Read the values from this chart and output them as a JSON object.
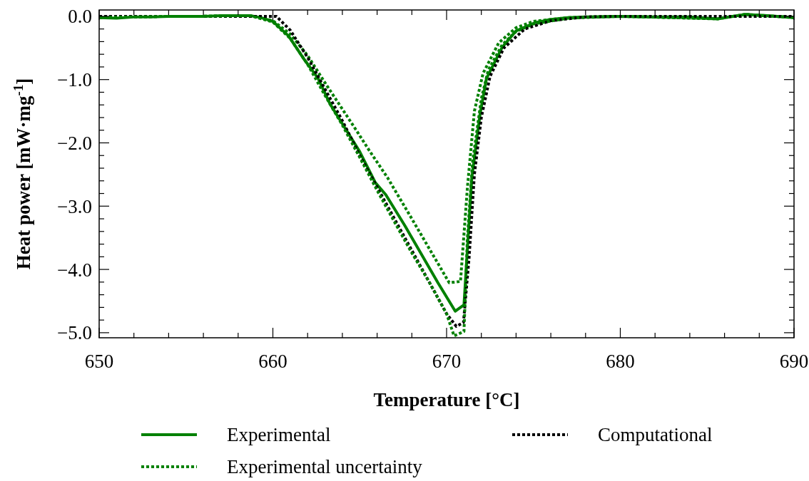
{
  "chart_data": {
    "type": "line",
    "xlabel": "Temperature [°C]",
    "ylabel": "Heat power [mW·mg$^{-1}$]",
    "xlim": [
      650,
      690
    ],
    "ylim": [
      -5.08,
      0.1
    ],
    "xticks": [
      650,
      {
        "value": 652,
        "label": null
      },
      {
        "value": 654,
        "label": null
      },
      {
        "value": 656,
        "label": null
      },
      {
        "value": 658,
        "label": null
      },
      660,
      {
        "value": 662,
        "label": null
      },
      {
        "value": 664,
        "label": null
      },
      {
        "value": 666,
        "label": null
      },
      {
        "value": 668,
        "label": null
      },
      670,
      {
        "value": 672,
        "label": null
      },
      {
        "value": 674,
        "label": null
      },
      {
        "value": 676,
        "label": null
      },
      {
        "value": 678,
        "label": null
      },
      680,
      {
        "value": 682,
        "label": null
      },
      {
        "value": 684,
        "label": null
      },
      {
        "value": 686,
        "label": null
      },
      {
        "value": 688,
        "label": null
      },
      690
    ],
    "yticks": [
      {
        "value": 0,
        "label": "0.0"
      },
      {
        "value": -0.2,
        "label": null
      },
      {
        "value": -0.4,
        "label": null
      },
      {
        "value": -0.6,
        "label": null
      },
      {
        "value": -0.8,
        "label": null
      },
      {
        "value": -1,
        "label": "−1.0"
      },
      {
        "value": -1.2,
        "label": null
      },
      {
        "value": -1.4,
        "label": null
      },
      {
        "value": -1.6,
        "label": null
      },
      {
        "value": -1.8,
        "label": null
      },
      {
        "value": -2,
        "label": "−2.0"
      },
      {
        "value": -2.2,
        "label": null
      },
      {
        "value": -2.4,
        "label": null
      },
      {
        "value": -2.6,
        "label": null
      },
      {
        "value": -2.8,
        "label": null
      },
      {
        "value": -3,
        "label": "−3.0"
      },
      {
        "value": -3.2,
        "label": null
      },
      {
        "value": -3.4,
        "label": null
      },
      {
        "value": -3.6,
        "label": null
      },
      {
        "value": -3.8,
        "label": null
      },
      {
        "value": -4,
        "label": "−4.0"
      },
      {
        "value": -4.2,
        "label": null
      },
      {
        "value": -4.4,
        "label": null
      },
      {
        "value": -4.6,
        "label": null
      },
      {
        "value": -4.8,
        "label": null
      },
      {
        "value": -5,
        "label": "−5.0"
      }
    ],
    "grid": false,
    "legend": "bottom",
    "marker": "none",
    "series": [
      {
        "name": "Experimental",
        "color": "#008000",
        "line_style": "solid",
        "x": [
          650,
          651,
          652,
          653,
          654,
          655,
          656,
          657,
          658,
          658.7,
          659.3,
          660,
          660.9,
          661.8,
          662.6,
          663.3,
          665,
          665.9,
          666.5,
          667.6,
          669.5,
          670.5,
          671,
          671.45,
          671.93,
          672.3,
          673.2,
          674,
          675.1,
          676,
          677,
          678,
          680,
          682,
          684,
          685.6,
          687.2,
          688.5,
          690
        ],
        "values": [
          -0.02,
          -0.03,
          -0.01,
          -0.01,
          0,
          0,
          0,
          0.01,
          0.01,
          0.01,
          -0.02,
          -0.08,
          -0.31,
          -0.68,
          -0.98,
          -1.39,
          -2.14,
          -2.63,
          -2.82,
          -3.31,
          -4.21,
          -4.66,
          -4.56,
          -2.56,
          -1.54,
          -0.98,
          -0.49,
          -0.23,
          -0.1,
          -0.05,
          -0.02,
          -0.01,
          0,
          -0.01,
          -0.01,
          -0.04,
          0.03,
          0.01,
          -0.02
        ]
      },
      {
        "name": "Experimental uncertainty",
        "color": "#008000",
        "line_style": "dotted",
        "x": [
          650,
          652,
          654,
          656,
          658,
          658.7,
          660,
          661,
          662,
          663,
          664.8,
          665.5,
          666.6,
          668,
          670.15,
          670.8,
          671.2,
          671.6,
          672.1,
          673,
          674,
          675,
          677,
          680,
          685.6,
          687.2,
          690
        ],
        "values": [
          -0.02,
          -0.01,
          0,
          0,
          0.01,
          0.01,
          -0.07,
          -0.28,
          -0.62,
          -1.05,
          -1.8,
          -2.1,
          -2.55,
          -3.2,
          -4.21,
          -4.19,
          -2.7,
          -1.5,
          -0.9,
          -0.42,
          -0.18,
          -0.08,
          -0.02,
          0,
          -0.04,
          0.03,
          -0.02
        ]
      },
      {
        "name": "Computational",
        "color": "#000000",
        "line_style": "dotted",
        "x": [
          650,
          655,
          660,
          660.2,
          661,
          662,
          663,
          664,
          665,
          666,
          667,
          668,
          669,
          670,
          670.56,
          670.97,
          671.3,
          671.6,
          672,
          672.5,
          673.3,
          674.5,
          676,
          678,
          680,
          690
        ],
        "values": [
          0,
          0,
          0,
          0,
          -0.22,
          -0.65,
          -1.15,
          -1.65,
          -2.2,
          -2.7,
          -3.2,
          -3.7,
          -4.2,
          -4.7,
          -4.9,
          -4.84,
          -3.8,
          -2.5,
          -1.6,
          -0.95,
          -0.5,
          -0.2,
          -0.07,
          -0.01,
          0,
          0
        ]
      },
      {
        "color": "#008000",
        "line_style": "dotted",
        "x": [
          650,
          652,
          654,
          656,
          658,
          658.7,
          660,
          661,
          662,
          663,
          664,
          665,
          666,
          667,
          668,
          669,
          670,
          670.43,
          671,
          671.2,
          671.5,
          672,
          672.4,
          673.2,
          674,
          675,
          677,
          680,
          685.6,
          687.2,
          690
        ],
        "values": [
          -0.02,
          -0.01,
          0,
          0,
          0.01,
          0.01,
          -0.09,
          -0.35,
          -0.76,
          -1.25,
          -1.72,
          -2.23,
          -2.75,
          -3.25,
          -3.74,
          -4.2,
          -4.7,
          -5.05,
          -4.98,
          -3.5,
          -2.3,
          -1.3,
          -0.85,
          -0.45,
          -0.24,
          -0.12,
          -0.03,
          0,
          -0.04,
          0.03,
          -0.02
        ]
      }
    ]
  }
}
